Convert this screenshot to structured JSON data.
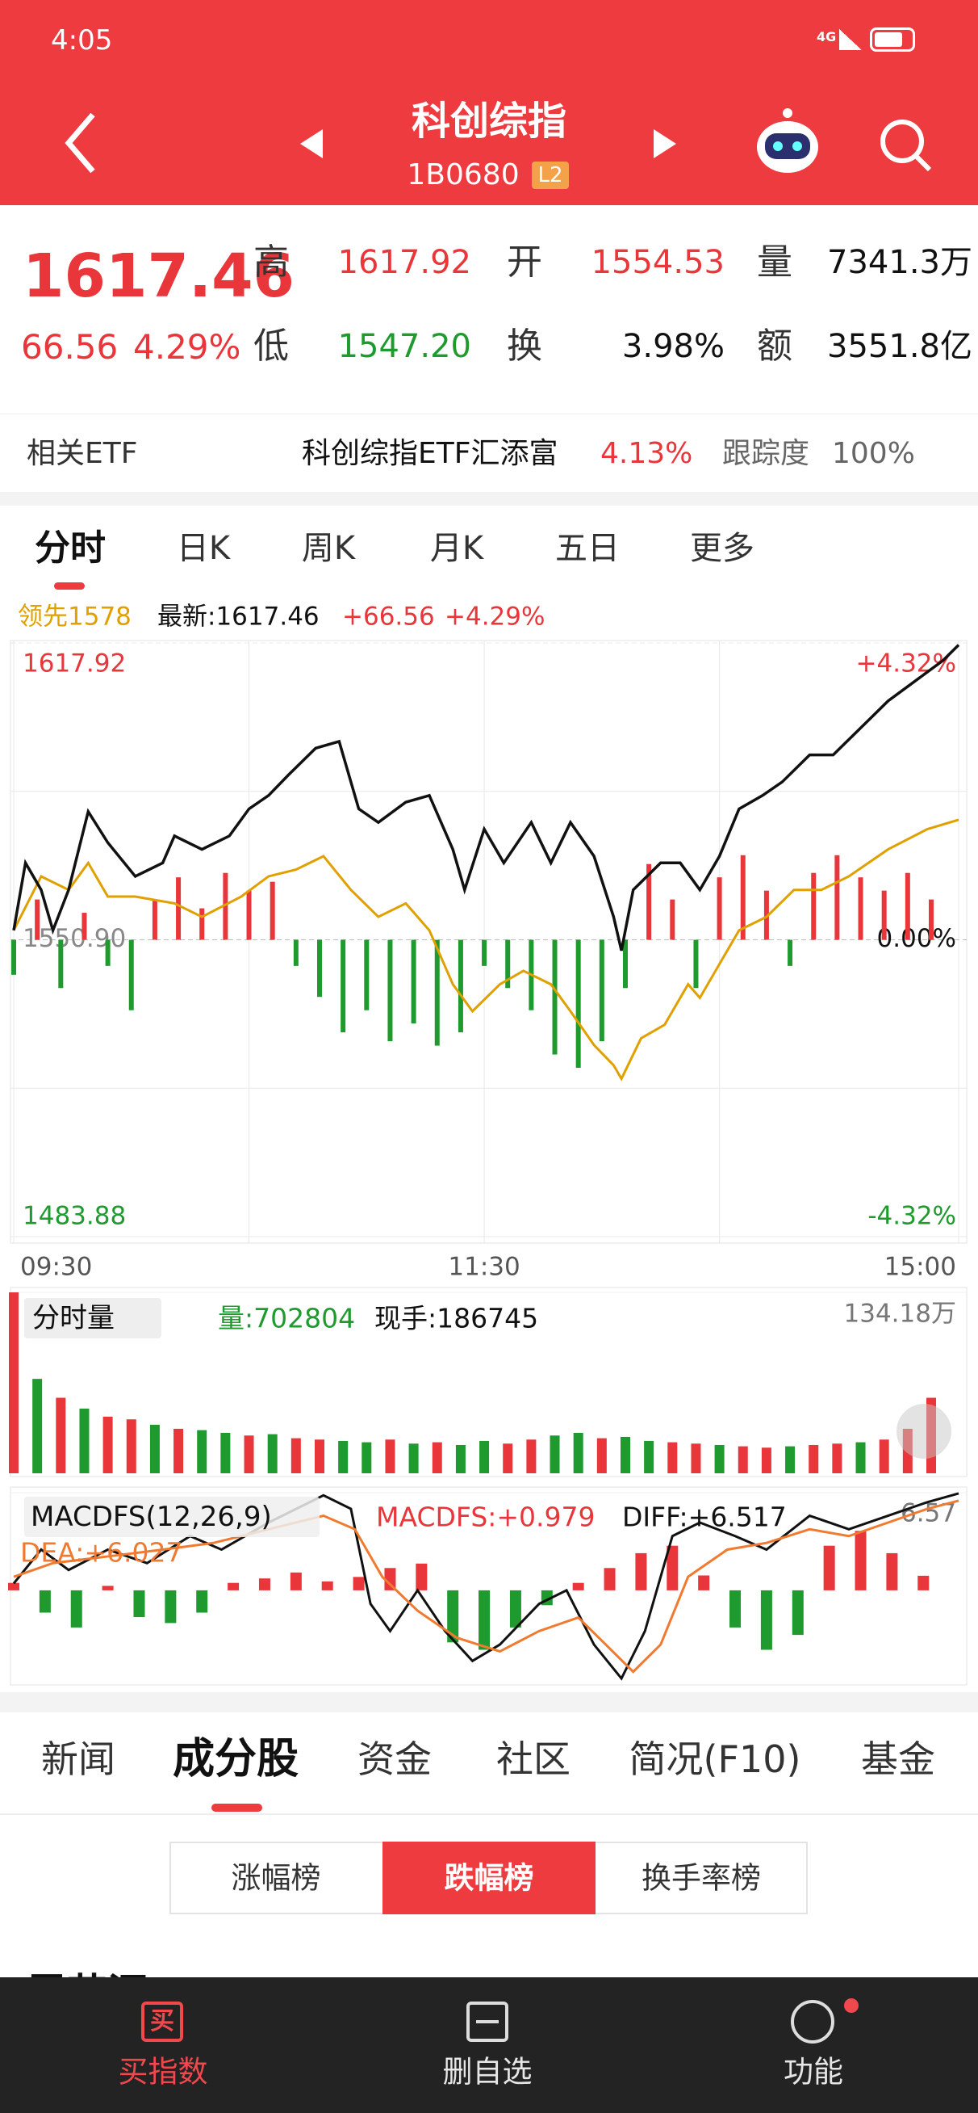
{
  "status_bar": {
    "time": "4:05",
    "network": "4G"
  },
  "header": {
    "title": "科创综指",
    "code": "1B0680",
    "badge": "L2"
  },
  "quote": {
    "price": "1617.46",
    "change": "66.56",
    "change_pct": "4.29%",
    "color": "#e8363b",
    "fields": [
      {
        "label": "高",
        "value": "1617.92",
        "color": "#e8363b"
      },
      {
        "label": "开",
        "value": "1554.53",
        "color": "#e8363b"
      },
      {
        "label": "量",
        "value": "7341.3万",
        "color": "#111111"
      },
      {
        "label": "低",
        "value": "1547.20",
        "color": "#1f9a2e"
      },
      {
        "label": "换",
        "value": "3.98%",
        "color": "#111111"
      },
      {
        "label": "额",
        "value": "3551.8亿",
        "color": "#111111"
      }
    ]
  },
  "etf": {
    "label": "相关ETF",
    "name": "科创综指ETF汇添富",
    "change": "4.13%",
    "tracking_label": "跟踪度",
    "tracking": "100%"
  },
  "chart_tabs": {
    "items": [
      "分时",
      "日K",
      "周K",
      "月K",
      "五日",
      "更多"
    ],
    "active": 0
  },
  "price_chart": {
    "type": "line",
    "info": [
      {
        "text": "领先1578",
        "color": "#e0a000"
      },
      {
        "text": "最新:1617.46",
        "color": "#111111"
      },
      {
        "text": "+66.56",
        "color": "#e8363b"
      },
      {
        "text": "+4.29%",
        "color": "#e8363b"
      }
    ],
    "xlim": [
      0,
      241
    ],
    "xticks": [
      {
        "value": 0,
        "label": "09:30"
      },
      {
        "value": 60,
        "label": null
      },
      {
        "value": 120,
        "label": "11:30"
      },
      {
        "value": 180,
        "label": null
      },
      {
        "value": 241,
        "label": "15:00"
      }
    ],
    "ylim": [
      1483.88,
      1617.92
    ],
    "yticks": [
      1617.92,
      {
        "value": 1584.41,
        "label": null
      },
      {
        "value": 1550.9,
        "label": "1550.90"
      },
      {
        "value": 1517.39,
        "label": null
      },
      1483.88
    ],
    "y2lim": [
      -4.32,
      4.32
    ],
    "y2ticks": [
      {
        "value": 4.32,
        "label": "+4.32%"
      },
      {
        "value": 0,
        "label": "0.00%"
      },
      {
        "value": -4.32,
        "label": "-4.32%"
      }
    ],
    "baseline": 1550.9,
    "up_color": "#e8363b",
    "down_color": "#1f9a2e",
    "flat_color": "#888888",
    "series": [
      {
        "color": "#111111",
        "x": [
          0,
          3,
          7,
          10,
          14,
          19,
          24,
          31,
          38,
          41,
          48,
          55,
          60,
          65,
          70,
          77,
          83,
          88,
          93,
          100,
          106,
          112,
          115,
          120,
          125,
          132,
          137,
          142,
          148,
          153,
          155,
          158,
          165,
          170,
          175,
          180,
          185,
          191,
          196,
          203,
          209,
          216,
          223,
          230,
          237,
          241
        ],
        "values": [
          1553.03,
          1568.26,
          1562.17,
          1553.03,
          1562.17,
          1579.84,
          1572.83,
          1565.22,
          1568.26,
          1574.35,
          1571.31,
          1574.35,
          1580.45,
          1583.49,
          1588.06,
          1594.15,
          1595.68,
          1580.45,
          1577.4,
          1581.97,
          1583.49,
          1571.31,
          1562.17,
          1575.88,
          1568.26,
          1577.4,
          1568.26,
          1577.4,
          1569.78,
          1556.08,
          1548.46,
          1562.17,
          1568.26,
          1568.26,
          1562.17,
          1569.78,
          1580.45,
          1583.49,
          1586.54,
          1592.63,
          1592.63,
          1598.72,
          1604.81,
          1609.38,
          1613.95,
          1617.46
        ]
      },
      {
        "color": "#e0a000",
        "x": [
          0,
          7,
          14,
          19,
          24,
          31,
          41,
          48,
          58,
          65,
          72,
          79,
          86,
          93,
          100,
          106,
          112,
          117,
          124,
          130,
          137,
          142,
          148,
          153,
          155,
          160,
          166,
          172,
          175,
          180,
          185,
          192,
          199,
          206,
          213,
          223,
          233,
          241
        ],
        "values": [
          1553.03,
          1565.22,
          1562.17,
          1568.26,
          1560.65,
          1560.65,
          1559.12,
          1556.08,
          1560.65,
          1565.22,
          1566.74,
          1569.78,
          1562.17,
          1556.08,
          1559.12,
          1553.03,
          1540.85,
          1534.76,
          1540.85,
          1543.89,
          1540.85,
          1534.76,
          1527.14,
          1522.57,
          1519.53,
          1528.66,
          1531.71,
          1540.85,
          1537.8,
          1545.42,
          1553.03,
          1556.08,
          1562.17,
          1562.17,
          1565.22,
          1571.31,
          1575.88,
          1578
        ]
      }
    ],
    "bars": {
      "x": [
        0,
        6,
        12,
        18,
        24,
        30,
        36,
        42,
        48,
        54,
        60,
        66,
        72,
        78,
        84,
        90,
        96,
        102,
        108,
        114,
        120,
        126,
        132,
        138,
        144,
        150,
        156,
        162,
        168,
        174,
        180,
        186,
        192,
        198,
        204,
        210,
        216,
        222,
        228,
        234
      ],
      "values": [
        1543,
        1560,
        1540,
        1557,
        1545,
        1535,
        1560,
        1565,
        1558,
        1566,
        1562,
        1564,
        1545,
        1538,
        1530,
        1535,
        1528,
        1532,
        1527,
        1530,
        1545,
        1540,
        1535,
        1525,
        1522,
        1528,
        1540,
        1568,
        1560,
        1540,
        1565,
        1570,
        1562,
        1545,
        1566,
        1570,
        1565,
        1562,
        1566,
        1560
      ]
    }
  },
  "volume_chart": {
    "type": "bar",
    "header": "分时量",
    "volume": "量:702804",
    "volume_color": "#1f9a2e",
    "current": "现手:186745",
    "xlim": [
      0,
      241
    ],
    "ylim": [
      0,
      1341800
    ],
    "yticks": [
      {
        "value": 1341800,
        "label": "134.18万"
      }
    ],
    "up_color": "#e8363b",
    "down_color": "#1f9a2e",
    "x": [
      0,
      6,
      12,
      18,
      24,
      30,
      36,
      42,
      48,
      54,
      60,
      66,
      72,
      78,
      84,
      90,
      96,
      102,
      108,
      114,
      120,
      126,
      132,
      138,
      144,
      150,
      156,
      162,
      168,
      174,
      180,
      186,
      192,
      198,
      204,
      210,
      216,
      222,
      228,
      234
    ],
    "values": [
      1341800,
      700000,
      560000,
      480000,
      420000,
      400000,
      360000,
      330000,
      320000,
      300000,
      280000,
      290000,
      260000,
      250000,
      240000,
      230000,
      250000,
      220000,
      230000,
      210000,
      240000,
      220000,
      250000,
      280000,
      300000,
      260000,
      270000,
      240000,
      230000,
      220000,
      210000,
      200000,
      190000,
      200000,
      210000,
      220000,
      230000,
      250000,
      330000,
      560000
    ],
    "up": [
      true,
      false,
      true,
      false,
      true,
      true,
      false,
      true,
      false,
      false,
      true,
      false,
      true,
      true,
      false,
      false,
      true,
      false,
      true,
      false,
      false,
      true,
      true,
      false,
      false,
      true,
      false,
      false,
      true,
      true,
      false,
      true,
      true,
      false,
      true,
      true,
      false,
      true,
      true,
      true
    ]
  },
  "macd_chart": {
    "type": "macd",
    "header": "MACDFS(12,26,9)",
    "labels": [
      {
        "text": "MACDFS:+0.979",
        "color": "#e8363b"
      },
      {
        "text": "DIFF:+6.517",
        "color": "#111111"
      },
      {
        "text": "DEA:+6.027",
        "color": "#f07a30"
      }
    ],
    "xlim": [
      0,
      241
    ],
    "ylim": [
      -6.2,
      6.57
    ],
    "yticks": [
      6.57
    ],
    "up_color": "#e8363b",
    "down_color": "#1f9a2e",
    "bars": {
      "x": [
        0,
        8,
        16,
        24,
        32,
        40,
        48,
        56,
        64,
        72,
        80,
        88,
        96,
        104,
        112,
        120,
        128,
        136,
        144,
        152,
        160,
        168,
        176,
        184,
        192,
        200,
        208,
        216,
        224,
        232
      ],
      "values": [
        0.5,
        -1.5,
        -2.5,
        0.3,
        -1.8,
        -2.2,
        -1.5,
        0.5,
        0.8,
        1.2,
        0.6,
        0.9,
        1.5,
        1.8,
        -3.5,
        -4.0,
        -2.5,
        -1.0,
        0.5,
        1.5,
        2.5,
        3.0,
        1.0,
        -2.5,
        -4.0,
        -3.0,
        3.0,
        4.0,
        2.5,
        0.98
      ]
    },
    "series": [
      {
        "color": "#111111",
        "x": [
          0,
          7,
          14,
          24,
          34,
          45,
          53,
          65,
          79,
          86,
          91,
          96,
          103,
          110,
          117,
          124,
          134,
          141,
          148,
          155,
          161,
          168,
          175,
          184,
          192,
          203,
          213,
          223,
          233,
          241
        ],
        "values": [
          0.46,
          2.74,
          1.37,
          2.74,
          1.83,
          3.65,
          2.74,
          4.56,
          6.39,
          5.48,
          -0.91,
          -2.74,
          0,
          -2.74,
          -4.75,
          -3.65,
          -0.91,
          0,
          -3.65,
          -5.93,
          -2.74,
          3.65,
          4.56,
          3.65,
          2.74,
          5.02,
          4.11,
          5.02,
          5.93,
          6.52
        ]
      },
      {
        "color": "#f07a30",
        "x": [
          0,
          10,
          24,
          38,
          51,
          65,
          79,
          87,
          94,
          103,
          113,
          124,
          134,
          144,
          151,
          158,
          165,
          172,
          182,
          192,
          203,
          213,
          223,
          233,
          241
        ],
        "values": [
          0.91,
          1.83,
          2.28,
          2.74,
          3.19,
          4.11,
          5.02,
          4.11,
          0.91,
          -1.37,
          -3.19,
          -4.11,
          -2.74,
          -1.83,
          -3.65,
          -5.48,
          -3.65,
          0.91,
          2.74,
          3.19,
          4.11,
          3.65,
          4.56,
          5.48,
          6.03
        ]
      }
    ]
  },
  "content_tabs": {
    "items": [
      "新闻",
      "成分股",
      "资金",
      "社区",
      "简况(F10)",
      "基金"
    ],
    "active": 1
  },
  "rank_tabs": {
    "items": [
      "涨幅榜",
      "跌幅榜",
      "换手率榜"
    ],
    "active": 1
  },
  "list_first": "雷艺汇",
  "bottom_nav": {
    "items": [
      {
        "icon": "买",
        "label": "买指数"
      },
      {
        "label": "删自选"
      },
      {
        "label": "功能"
      }
    ]
  }
}
